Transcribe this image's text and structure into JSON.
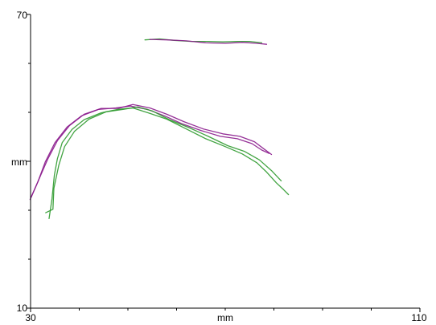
{
  "chart_data": {
    "type": "line",
    "xlabel": "mm",
    "ylabel": "mm",
    "xlim": [
      30,
      110
    ],
    "ylim": [
      10,
      70
    ],
    "x_tick_labels": [
      "30",
      "110"
    ],
    "y_tick_labels": [
      "70",
      "10"
    ],
    "x_minor_ticks": [
      40,
      50,
      60,
      70,
      80,
      90,
      100
    ],
    "y_minor_ticks": [
      20,
      30,
      40,
      50,
      60
    ],
    "grid": false,
    "legend": "none",
    "colors": {
      "purple": "#8a1a8c",
      "green": "#2e9a2e",
      "axis": "#000000"
    },
    "series": [
      {
        "color": "#8a1a8c",
        "points": [
          [
            29.9,
            32.2
          ],
          [
            31.5,
            35.8
          ],
          [
            33.0,
            39.8
          ],
          [
            35.0,
            43.8
          ],
          [
            37.5,
            47.0
          ],
          [
            40.5,
            49.3
          ],
          [
            44.0,
            50.6
          ],
          [
            47.5,
            50.9
          ],
          [
            50.5,
            51.3
          ],
          [
            54.0,
            50.6
          ],
          [
            57.5,
            49.3
          ],
          [
            61.0,
            47.7
          ],
          [
            65.0,
            46.3
          ],
          [
            69.0,
            45.1
          ],
          [
            72.5,
            44.6
          ],
          [
            75.5,
            43.6
          ],
          [
            77.5,
            42.3
          ],
          [
            79.0,
            41.6
          ]
        ]
      },
      {
        "color": "#8a1a8c",
        "points": [
          [
            30.1,
            32.6
          ],
          [
            31.8,
            36.5
          ],
          [
            33.5,
            40.4
          ],
          [
            35.5,
            44.2
          ],
          [
            38.0,
            47.3
          ],
          [
            41.0,
            49.6
          ],
          [
            44.5,
            50.8
          ],
          [
            48.0,
            50.8
          ],
          [
            51.0,
            51.6
          ],
          [
            54.5,
            50.9
          ],
          [
            58.0,
            49.6
          ],
          [
            61.5,
            48.1
          ],
          [
            65.5,
            46.6
          ],
          [
            69.5,
            45.6
          ],
          [
            73.0,
            45.1
          ],
          [
            76.0,
            44.0
          ],
          [
            78.0,
            42.5
          ],
          [
            79.5,
            41.4
          ]
        ]
      },
      {
        "color": "#2e9a2e",
        "points": [
          [
            53.5,
            64.8
          ],
          [
            56.5,
            65.0
          ],
          [
            59.5,
            64.7
          ],
          [
            63.0,
            64.5
          ],
          [
            66.5,
            64.5
          ],
          [
            69.5,
            64.4
          ],
          [
            72.5,
            64.5
          ],
          [
            75.0,
            64.5
          ],
          [
            77.5,
            64.2
          ]
        ]
      },
      {
        "color": "#8a1a8c",
        "points": [
          [
            54.5,
            64.9
          ],
          [
            58.0,
            64.8
          ],
          [
            62.0,
            64.6
          ],
          [
            66.0,
            64.2
          ],
          [
            70.0,
            64.1
          ],
          [
            73.5,
            64.3
          ],
          [
            76.5,
            64.1
          ],
          [
            78.5,
            63.9
          ]
        ]
      },
      {
        "color": "#2e9a2e",
        "points": [
          [
            33.8,
            28.3
          ],
          [
            34.4,
            32.3
          ],
          [
            34.9,
            37.2
          ],
          [
            35.5,
            40.5
          ],
          [
            36.5,
            43.8
          ],
          [
            38.5,
            46.5
          ],
          [
            41.0,
            48.5
          ],
          [
            44.5,
            49.9
          ],
          [
            48.0,
            50.6
          ],
          [
            51.0,
            50.9
          ],
          [
            54.5,
            49.8
          ],
          [
            58.0,
            48.6
          ],
          [
            62.0,
            46.6
          ],
          [
            66.0,
            44.6
          ],
          [
            70.0,
            43.0
          ],
          [
            73.5,
            41.5
          ],
          [
            76.5,
            39.7
          ],
          [
            78.5,
            37.8
          ],
          [
            80.5,
            35.6
          ],
          [
            82.0,
            34.2
          ],
          [
            83.0,
            33.2
          ]
        ]
      },
      {
        "color": "#2e9a2e",
        "points": [
          [
            33.1,
            29.5
          ],
          [
            34.6,
            30.2
          ],
          [
            34.8,
            34.5
          ],
          [
            35.8,
            39.2
          ],
          [
            37.0,
            43.0
          ],
          [
            39.0,
            46.1
          ],
          [
            42.0,
            48.6
          ],
          [
            45.5,
            50.1
          ],
          [
            49.0,
            50.6
          ],
          [
            52.0,
            51.1
          ],
          [
            55.0,
            50.3
          ],
          [
            58.5,
            48.5
          ],
          [
            62.5,
            46.9
          ],
          [
            66.5,
            45.1
          ],
          [
            70.5,
            43.2
          ],
          [
            74.0,
            42.0
          ],
          [
            77.0,
            40.3
          ],
          [
            79.5,
            38.1
          ],
          [
            81.5,
            36.0
          ]
        ]
      }
    ]
  }
}
